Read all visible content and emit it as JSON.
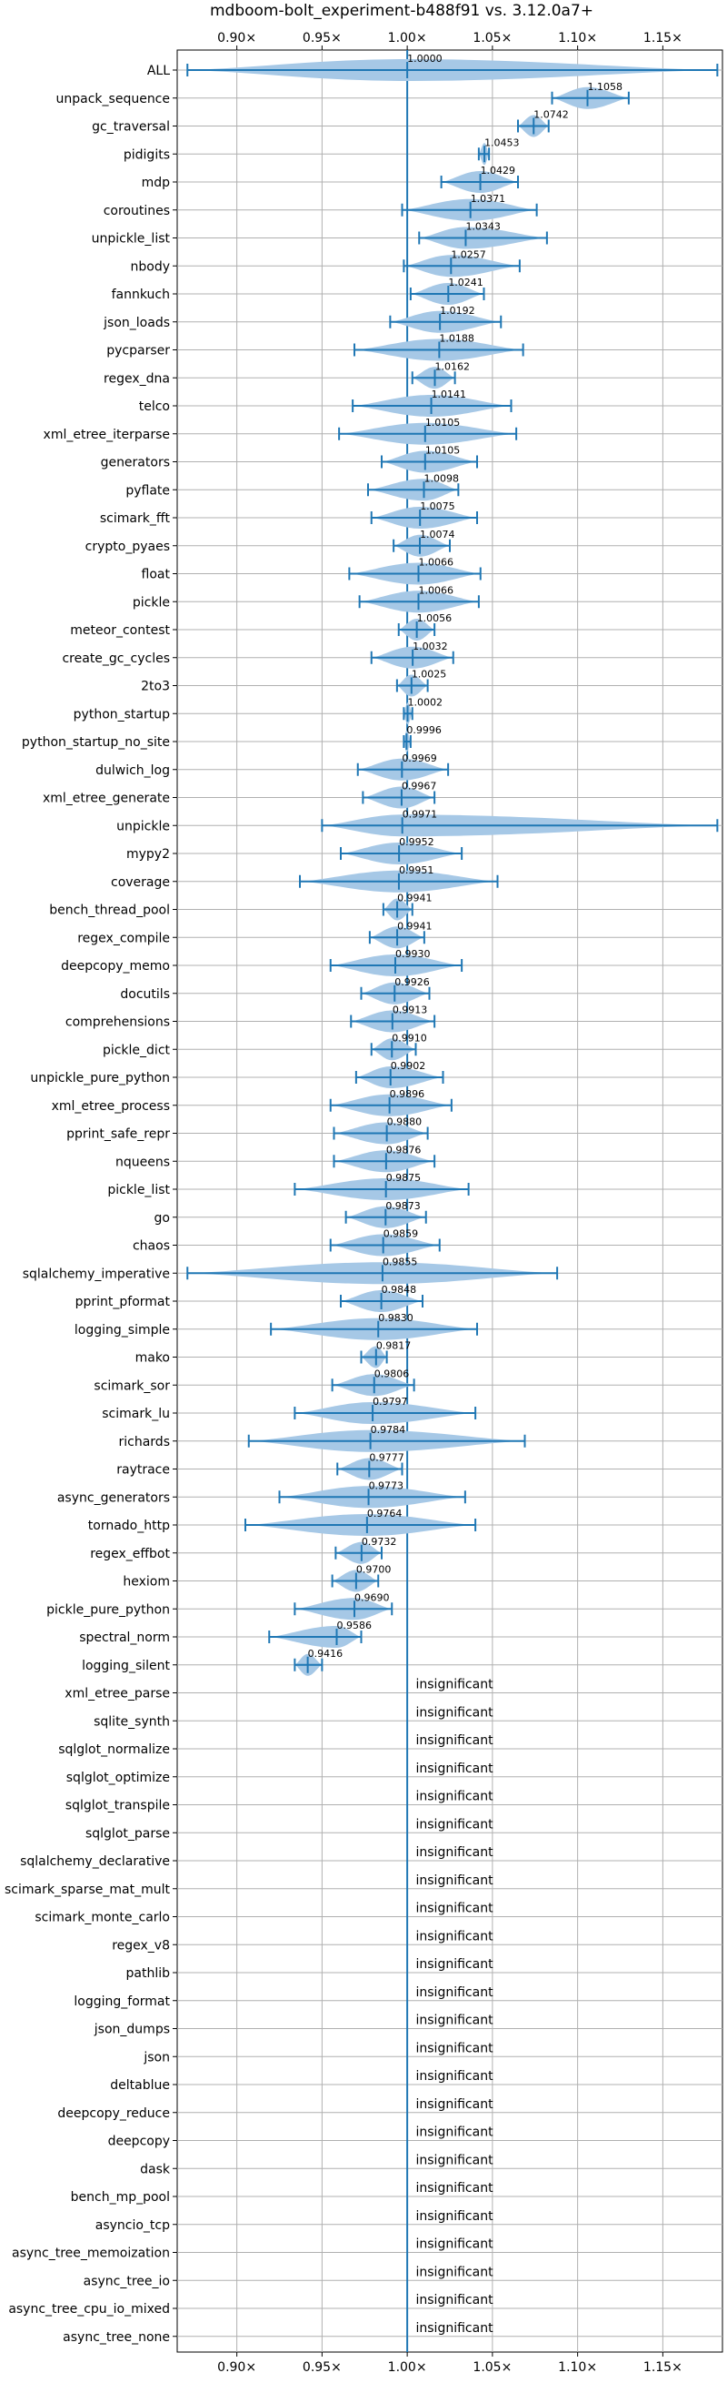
{
  "chart_data": {
    "type": "violin",
    "title": "mdboom-bolt_experiment-b488f91 vs. 3.12.0a7+",
    "xlim": [
      0.865,
      1.185
    ],
    "xticks": [
      0.9,
      0.95,
      1.0,
      1.05,
      1.1,
      1.15
    ],
    "xtick_labels": [
      "0.90×",
      "0.95×",
      "1.00×",
      "1.05×",
      "1.10×",
      "1.15×"
    ],
    "reference_line": 1.0,
    "grid": true,
    "colors": {
      "violin": "#a6c8e6",
      "line": "#1f77b4",
      "grid": "#b0b0b0"
    },
    "insignificant_label": "insignificant",
    "benchmarks": [
      {
        "name": "ALL",
        "value": 1.0,
        "label": "1.0000",
        "min": 0.871,
        "max": 1.182
      },
      {
        "name": "unpack_sequence",
        "value": 1.1058,
        "label": "1.1058",
        "min": 1.085,
        "max": 1.13
      },
      {
        "name": "gc_traversal",
        "value": 1.0742,
        "label": "1.0742",
        "min": 1.065,
        "max": 1.083
      },
      {
        "name": "pidigits",
        "value": 1.0453,
        "label": "1.0453",
        "min": 1.042,
        "max": 1.048
      },
      {
        "name": "mdp",
        "value": 1.0429,
        "label": "1.0429",
        "min": 1.02,
        "max": 1.065
      },
      {
        "name": "coroutines",
        "value": 1.0371,
        "label": "1.0371",
        "min": 0.997,
        "max": 1.076
      },
      {
        "name": "unpickle_list",
        "value": 1.0343,
        "label": "1.0343",
        "min": 1.007,
        "max": 1.082
      },
      {
        "name": "nbody",
        "value": 1.0257,
        "label": "1.0257",
        "min": 0.998,
        "max": 1.066
      },
      {
        "name": "fannkuch",
        "value": 1.0241,
        "label": "1.0241",
        "min": 1.002,
        "max": 1.045
      },
      {
        "name": "json_loads",
        "value": 1.0192,
        "label": "1.0192",
        "min": 0.99,
        "max": 1.055
      },
      {
        "name": "pycparser",
        "value": 1.0188,
        "label": "1.0188",
        "min": 0.969,
        "max": 1.068
      },
      {
        "name": "regex_dna",
        "value": 1.0162,
        "label": "1.0162",
        "min": 1.003,
        "max": 1.028
      },
      {
        "name": "telco",
        "value": 1.0141,
        "label": "1.0141",
        "min": 0.968,
        "max": 1.061
      },
      {
        "name": "xml_etree_iterparse",
        "value": 1.0105,
        "label": "1.0105",
        "min": 0.96,
        "max": 1.064
      },
      {
        "name": "generators",
        "value": 1.0105,
        "label": "1.0105",
        "min": 0.985,
        "max": 1.041
      },
      {
        "name": "pyflate",
        "value": 1.0098,
        "label": "1.0098",
        "min": 0.977,
        "max": 1.03
      },
      {
        "name": "scimark_fft",
        "value": 1.0075,
        "label": "1.0075",
        "min": 0.979,
        "max": 1.041
      },
      {
        "name": "crypto_pyaes",
        "value": 1.0074,
        "label": "1.0074",
        "min": 0.992,
        "max": 1.025
      },
      {
        "name": "float",
        "value": 1.0066,
        "label": "1.0066",
        "min": 0.966,
        "max": 1.043
      },
      {
        "name": "pickle",
        "value": 1.0066,
        "label": "1.0066",
        "min": 0.972,
        "max": 1.042
      },
      {
        "name": "meteor_contest",
        "value": 1.0056,
        "label": "1.0056",
        "min": 0.995,
        "max": 1.016
      },
      {
        "name": "create_gc_cycles",
        "value": 1.0032,
        "label": "1.0032",
        "min": 0.979,
        "max": 1.027
      },
      {
        "name": "2to3",
        "value": 1.0025,
        "label": "1.0025",
        "min": 0.994,
        "max": 1.012
      },
      {
        "name": "python_startup",
        "value": 1.0002,
        "label": "1.0002",
        "min": 0.998,
        "max": 1.003
      },
      {
        "name": "python_startup_no_site",
        "value": 0.9996,
        "label": "0.9996",
        "min": 0.998,
        "max": 1.002
      },
      {
        "name": "dulwich_log",
        "value": 0.9969,
        "label": "0.9969",
        "min": 0.971,
        "max": 1.024
      },
      {
        "name": "xml_etree_generate",
        "value": 0.9967,
        "label": "0.9967",
        "min": 0.974,
        "max": 1.016
      },
      {
        "name": "unpickle",
        "value": 0.9971,
        "label": "0.9971",
        "min": 0.95,
        "max": 1.182
      },
      {
        "name": "mypy2",
        "value": 0.9952,
        "label": "0.9952",
        "min": 0.961,
        "max": 1.032
      },
      {
        "name": "coverage",
        "value": 0.9951,
        "label": "0.9951",
        "min": 0.937,
        "max": 1.053
      },
      {
        "name": "bench_thread_pool",
        "value": 0.9941,
        "label": "0.9941",
        "min": 0.986,
        "max": 1.003
      },
      {
        "name": "regex_compile",
        "value": 0.9941,
        "label": "0.9941",
        "min": 0.978,
        "max": 1.01
      },
      {
        "name": "deepcopy_memo",
        "value": 0.993,
        "label": "0.9930",
        "min": 0.955,
        "max": 1.032
      },
      {
        "name": "docutils",
        "value": 0.9926,
        "label": "0.9926",
        "min": 0.973,
        "max": 1.013
      },
      {
        "name": "comprehensions",
        "value": 0.9913,
        "label": "0.9913",
        "min": 0.967,
        "max": 1.016
      },
      {
        "name": "pickle_dict",
        "value": 0.991,
        "label": "0.9910",
        "min": 0.979,
        "max": 1.005
      },
      {
        "name": "unpickle_pure_python",
        "value": 0.9902,
        "label": "0.9902",
        "min": 0.97,
        "max": 1.021
      },
      {
        "name": "xml_etree_process",
        "value": 0.9896,
        "label": "0.9896",
        "min": 0.955,
        "max": 1.026
      },
      {
        "name": "pprint_safe_repr",
        "value": 0.988,
        "label": "0.9880",
        "min": 0.957,
        "max": 1.012
      },
      {
        "name": "nqueens",
        "value": 0.9876,
        "label": "0.9876",
        "min": 0.957,
        "max": 1.016
      },
      {
        "name": "pickle_list",
        "value": 0.9875,
        "label": "0.9875",
        "min": 0.934,
        "max": 1.036
      },
      {
        "name": "go",
        "value": 0.9873,
        "label": "0.9873",
        "min": 0.964,
        "max": 1.011
      },
      {
        "name": "chaos",
        "value": 0.9859,
        "label": "0.9859",
        "min": 0.955,
        "max": 1.019
      },
      {
        "name": "sqlalchemy_imperative",
        "value": 0.9855,
        "label": "0.9855",
        "min": 0.871,
        "max": 1.088
      },
      {
        "name": "pprint_pformat",
        "value": 0.9848,
        "label": "0.9848",
        "min": 0.961,
        "max": 1.009
      },
      {
        "name": "logging_simple",
        "value": 0.983,
        "label": "0.9830",
        "min": 0.92,
        "max": 1.041
      },
      {
        "name": "mako",
        "value": 0.9817,
        "label": "0.9817",
        "min": 0.973,
        "max": 0.988
      },
      {
        "name": "scimark_sor",
        "value": 0.9806,
        "label": "0.9806",
        "min": 0.956,
        "max": 1.004
      },
      {
        "name": "scimark_lu",
        "value": 0.9797,
        "label": "0.9797",
        "min": 0.934,
        "max": 1.04
      },
      {
        "name": "richards",
        "value": 0.9784,
        "label": "0.9784",
        "min": 0.907,
        "max": 1.069
      },
      {
        "name": "raytrace",
        "value": 0.9777,
        "label": "0.9777",
        "min": 0.959,
        "max": 0.997
      },
      {
        "name": "async_generators",
        "value": 0.9773,
        "label": "0.9773",
        "min": 0.925,
        "max": 1.034
      },
      {
        "name": "tornado_http",
        "value": 0.9764,
        "label": "0.9764",
        "min": 0.905,
        "max": 1.04
      },
      {
        "name": "regex_effbot",
        "value": 0.9732,
        "label": "0.9732",
        "min": 0.958,
        "max": 0.985
      },
      {
        "name": "hexiom",
        "value": 0.97,
        "label": "0.9700",
        "min": 0.956,
        "max": 0.983
      },
      {
        "name": "pickle_pure_python",
        "value": 0.969,
        "label": "0.9690",
        "min": 0.934,
        "max": 0.991
      },
      {
        "name": "spectral_norm",
        "value": 0.9586,
        "label": "0.9586",
        "min": 0.919,
        "max": 0.973
      },
      {
        "name": "logging_silent",
        "value": 0.9416,
        "label": "0.9416",
        "min": 0.934,
        "max": 0.95
      },
      {
        "name": "xml_etree_parse",
        "insignificant": true
      },
      {
        "name": "sqlite_synth",
        "insignificant": true
      },
      {
        "name": "sqlglot_normalize",
        "insignificant": true
      },
      {
        "name": "sqlglot_optimize",
        "insignificant": true
      },
      {
        "name": "sqlglot_transpile",
        "insignificant": true
      },
      {
        "name": "sqlglot_parse",
        "insignificant": true
      },
      {
        "name": "sqlalchemy_declarative",
        "insignificant": true
      },
      {
        "name": "scimark_sparse_mat_mult",
        "insignificant": true
      },
      {
        "name": "scimark_monte_carlo",
        "insignificant": true
      },
      {
        "name": "regex_v8",
        "insignificant": true
      },
      {
        "name": "pathlib",
        "insignificant": true
      },
      {
        "name": "logging_format",
        "insignificant": true
      },
      {
        "name": "json_dumps",
        "insignificant": true
      },
      {
        "name": "json",
        "insignificant": true
      },
      {
        "name": "deltablue",
        "insignificant": true
      },
      {
        "name": "deepcopy_reduce",
        "insignificant": true
      },
      {
        "name": "deepcopy",
        "insignificant": true
      },
      {
        "name": "dask",
        "insignificant": true
      },
      {
        "name": "bench_mp_pool",
        "insignificant": true
      },
      {
        "name": "asyncio_tcp",
        "insignificant": true
      },
      {
        "name": "async_tree_memoization",
        "insignificant": true
      },
      {
        "name": "async_tree_io",
        "insignificant": true
      },
      {
        "name": "async_tree_cpu_io_mixed",
        "insignificant": true
      },
      {
        "name": "async_tree_none",
        "insignificant": true
      }
    ]
  }
}
